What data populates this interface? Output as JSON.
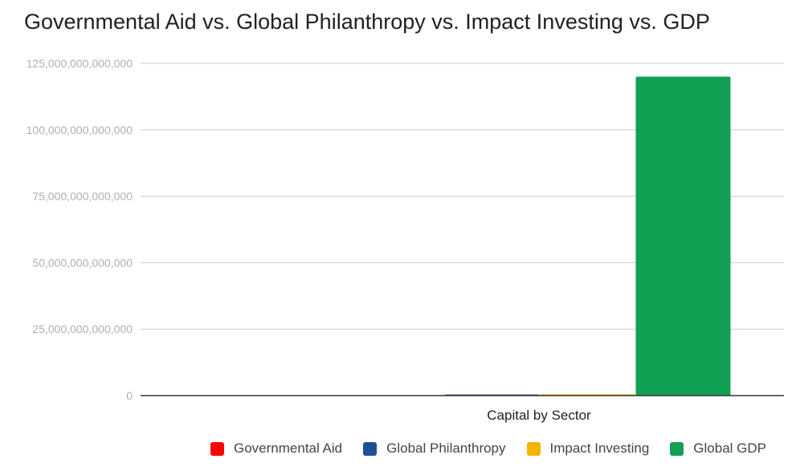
{
  "chart_data": {
    "type": "bar",
    "title": "Governmental Aid vs. Global Philanthropy vs. Impact Investing vs. GDP",
    "xlabel": "",
    "ylabel": "",
    "categories": [
      "Capital by Sector"
    ],
    "ylim": [
      0,
      125000000000000
    ],
    "yticks": [
      0,
      25000000000000,
      50000000000000,
      75000000000000,
      100000000000000,
      125000000000000
    ],
    "ytick_labels": [
      "0",
      "25,000,000,000,000",
      "50,000,000,000,000",
      "75,000,000,000,000",
      "100,000,000,000,000",
      "125,000,000,000,000"
    ],
    "grid": true,
    "legend_position": "bottom",
    "series": [
      {
        "name": "Governmental Aid",
        "color": "#ff0000",
        "values": [
          150000000000
        ]
      },
      {
        "name": "Global Philanthropy",
        "color": "#1f4e96",
        "values": [
          410000000000
        ]
      },
      {
        "name": "Impact Investing",
        "color": "#f4b400",
        "values": [
          500000000000
        ]
      },
      {
        "name": "Global GDP",
        "color": "#11a054",
        "values": [
          120000000000000
        ]
      }
    ]
  }
}
